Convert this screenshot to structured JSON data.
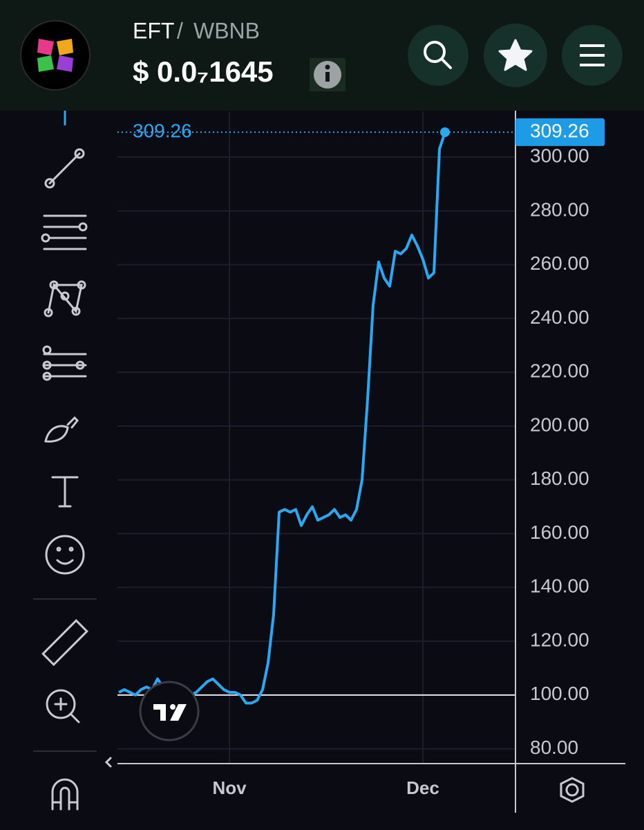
{
  "header": {
    "base": "EFT",
    "separator": "/",
    "quote": "WBNB",
    "price": "$ 0.0₇1645"
  },
  "chart_data": {
    "type": "line",
    "color": "#2aa9f2",
    "categories": [
      null,
      null,
      null,
      null,
      null,
      null,
      null,
      null,
      null,
      null,
      null,
      null,
      null,
      null,
      null,
      null,
      null,
      null,
      null,
      null,
      "Nov",
      null,
      null,
      null,
      null,
      null,
      null,
      null,
      null,
      null,
      null,
      null,
      null,
      null,
      null,
      null,
      null,
      null,
      null,
      null,
      null,
      null,
      null,
      null,
      null,
      null,
      null,
      null,
      null,
      null,
      null,
      null,
      null,
      null,
      null,
      "Dec",
      null,
      null,
      null,
      null
    ],
    "values": [
      101,
      102,
      101,
      100,
      102,
      103,
      102,
      106,
      103,
      102,
      101,
      100,
      101,
      100,
      101,
      103,
      105,
      106,
      104,
      102,
      101,
      101,
      100,
      97,
      97,
      98,
      102,
      112,
      130,
      168,
      169,
      168,
      169,
      163,
      167,
      170,
      165,
      166,
      167,
      169,
      166,
      167,
      165,
      169,
      180,
      210,
      245,
      261,
      255,
      252,
      265,
      264,
      266,
      271,
      267,
      262,
      255,
      257,
      303,
      309.26
    ],
    "ylim": [
      74.5,
      317
    ],
    "yticks": [
      {
        "value": 80,
        "label": "80.00"
      },
      {
        "value": 100,
        "label": "100.00"
      },
      {
        "value": 120,
        "label": "120.00"
      },
      {
        "value": 140,
        "label": "140.00"
      },
      {
        "value": 160,
        "label": "160.00"
      },
      {
        "value": 180,
        "label": "180.00"
      },
      {
        "value": 200,
        "label": "200.00"
      },
      {
        "value": 220,
        "label": "220.00"
      },
      {
        "value": 240,
        "label": "240.00"
      },
      {
        "value": 260,
        "label": "260.00"
      },
      {
        "value": 280,
        "label": "280.00"
      },
      {
        "value": 300,
        "label": "300.00"
      }
    ],
    "hline": 100,
    "grid": true
  }
}
